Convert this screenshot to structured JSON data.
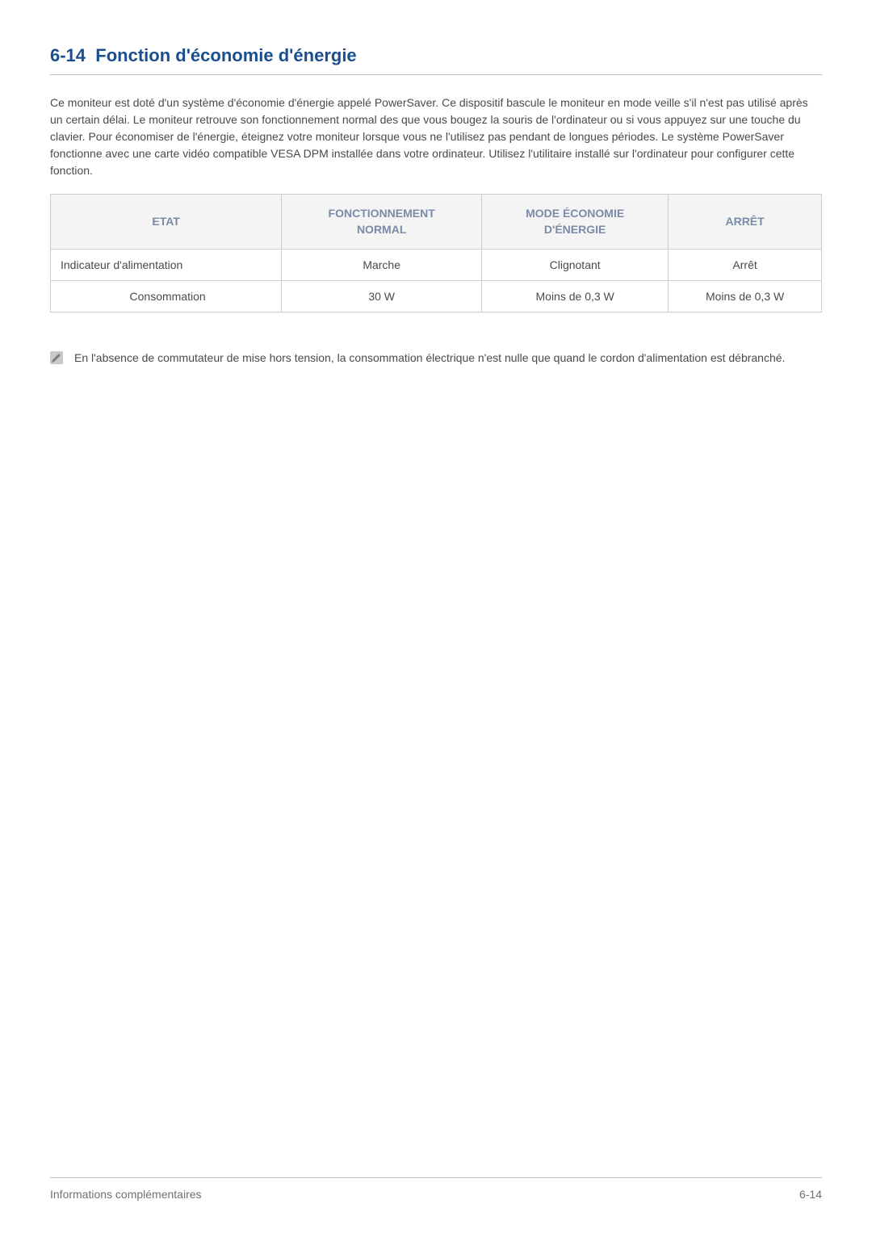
{
  "section": {
    "number": "6-14",
    "title": "Fonction d'économie d'énergie"
  },
  "body_paragraph": "Ce moniteur est doté d'un système d'économie d'énergie appelé PowerSaver. Ce dispositif bascule le moniteur en mode veille s'il n'est pas utilisé après un certain délai. Le moniteur retrouve son fonctionnement normal des que vous bougez la souris de l'ordinateur ou si vous appuyez sur une touche du clavier. Pour économiser de l'énergie, éteignez votre moniteur lorsque vous ne l'utilisez pas pendant de longues périodes. Le système PowerSaver fonctionne avec une carte vidéo compatible VESA DPM installée dans votre ordinateur. Utilisez l'utilitaire installé sur l'ordinateur pour configurer cette fonction.",
  "table": {
    "headers": [
      "ETAT",
      "FONCTIONNEMENT NORMAL",
      "MODE ÉCONOMIE D'ÉNERGIE",
      "ARRÊT"
    ],
    "rows": [
      [
        "Indicateur d'alimentation",
        "Marche",
        "Clignotant",
        "Arrêt"
      ],
      [
        "Consommation",
        "30 W",
        "Moins de 0,3 W",
        "Moins de 0,3 W"
      ]
    ]
  },
  "note": {
    "text": "En l'absence de commutateur de mise hors tension, la consommation électrique n'est nulle que quand le cordon d'alimentation est débranché."
  },
  "footer": {
    "left": "Informations complémentaires",
    "right": "6-14"
  },
  "colors": {
    "heading": "#1a4f8f",
    "body_text": "#4a4a4a",
    "table_header_bg": "#f4f4f4",
    "table_header_text": "#7a8ba8",
    "border": "#cccccc",
    "divider": "#c0c0c0",
    "footer_text": "#707070",
    "icon_fill": "#c8c8c8",
    "icon_inner": "#7a7a7a"
  }
}
